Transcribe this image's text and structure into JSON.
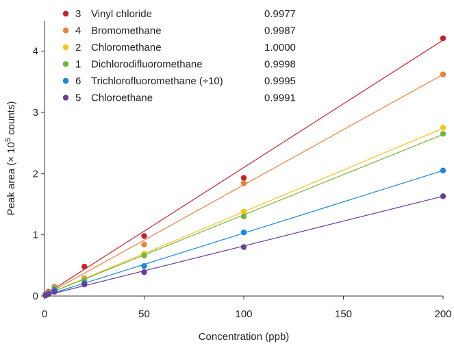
{
  "chart_data": {
    "type": "scatter",
    "xlabel": "Concentration (ppb)",
    "ylabel_prefix": "Peak area (× 10",
    "ylabel_sup": "5",
    "ylabel_suffix": " counts)",
    "xlim": [
      0,
      200
    ],
    "ylim": [
      0,
      4.5
    ],
    "xticks": [
      0,
      50,
      100,
      150,
      200
    ],
    "yticks": [
      0,
      1,
      2,
      3,
      4
    ],
    "x": [
      0.5,
      2,
      5,
      20,
      50,
      100,
      200
    ],
    "legend_position": "top-left",
    "grid": false,
    "series": [
      {
        "number": "3",
        "name": "Vinyl chloride",
        "r2": "0.9977",
        "color": "#c8202a",
        "values": [
          0.03,
          0.07,
          0.15,
          0.48,
          0.98,
          1.93,
          4.21
        ],
        "fit_end": 4.18
      },
      {
        "number": "4",
        "name": "Bromomethane",
        "r2": "0.9987",
        "color": "#e8823a",
        "values": [
          0.02,
          0.06,
          0.15,
          0.29,
          0.84,
          1.84,
          3.62
        ],
        "fit_end": 3.62
      },
      {
        "number": "2",
        "name": "Chloromethane",
        "r2": "1.0000",
        "color": "#f5c518",
        "values": [
          0.02,
          0.05,
          0.13,
          0.27,
          0.69,
          1.38,
          2.75
        ],
        "fit_end": 2.74
      },
      {
        "number": "1",
        "name": "Dichlorodifluoromethane",
        "r2": "0.9998",
        "color": "#74b43c",
        "values": [
          0.02,
          0.05,
          0.13,
          0.26,
          0.66,
          1.3,
          2.65
        ],
        "fit_end": 2.64
      },
      {
        "number": "6",
        "name": "Trichlorofluoromethane (÷10)",
        "r2": "0.9995",
        "color": "#1a87e0",
        "values": [
          0.01,
          0.04,
          0.1,
          0.21,
          0.49,
          1.04,
          2.05
        ],
        "fit_end": 2.05
      },
      {
        "number": "5",
        "name": "Chloroethane",
        "r2": "0.9991",
        "color": "#6a3d9a",
        "values": [
          0.01,
          0.03,
          0.07,
          0.19,
          0.39,
          0.8,
          1.63
        ],
        "fit_end": 1.63
      }
    ]
  }
}
